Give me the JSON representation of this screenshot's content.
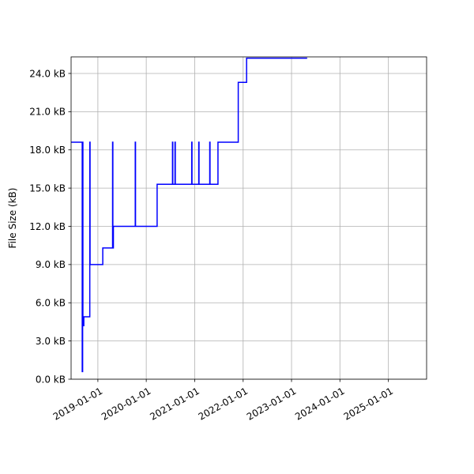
{
  "chart_data": {
    "type": "line",
    "title": "",
    "xlabel": "",
    "ylabel": "File Size (kB)",
    "x_scale": "date",
    "xlim": [
      "2018-06-13",
      "2025-10-16"
    ],
    "ylim": [
      0,
      25.3
    ],
    "grid": true,
    "legend": "none",
    "x_ticks": [
      "2019-01-01",
      "2020-01-01",
      "2021-01-01",
      "2022-01-01",
      "2023-01-01",
      "2024-01-01",
      "2025-01-01"
    ],
    "y_ticks": [
      0,
      3,
      6,
      9,
      12,
      15,
      18,
      21,
      24
    ],
    "y_tick_labels": [
      "0.0 kB",
      "3.0 kB",
      "6.0 kB",
      "9.0 kB",
      "12.0 kB",
      "15.0 kB",
      "18.0 kB",
      "21.0 kB",
      "24.0 kB"
    ],
    "series": [
      {
        "color": "#0000ff",
        "step": "post",
        "points": [
          [
            "2018-06-13",
            18.6
          ],
          [
            "2018-09-04",
            18.6
          ],
          [
            "2018-09-05",
            0.6
          ],
          [
            "2018-09-08",
            18.6
          ],
          [
            "2018-09-10",
            4.2
          ],
          [
            "2018-09-17",
            4.9
          ],
          [
            "2018-11-01",
            18.6
          ],
          [
            "2018-11-03",
            9.0
          ],
          [
            "2019-02-07",
            10.3
          ],
          [
            "2019-04-22",
            18.6
          ],
          [
            "2019-04-24",
            10.3
          ],
          [
            "2019-04-28",
            12.0
          ],
          [
            "2019-10-10",
            18.6
          ],
          [
            "2019-10-12",
            12.0
          ],
          [
            "2020-03-23",
            15.3
          ],
          [
            "2020-07-17",
            18.6
          ],
          [
            "2020-07-19",
            15.3
          ],
          [
            "2020-08-05",
            18.6
          ],
          [
            "2020-08-07",
            15.3
          ],
          [
            "2020-12-09",
            18.6
          ],
          [
            "2020-12-11",
            15.3
          ],
          [
            "2021-01-31",
            18.6
          ],
          [
            "2021-02-02",
            15.3
          ],
          [
            "2021-04-24",
            18.6
          ],
          [
            "2021-04-26",
            15.3
          ],
          [
            "2021-06-25",
            18.6
          ],
          [
            "2021-11-25",
            23.3
          ],
          [
            "2022-01-27",
            25.2
          ],
          [
            "2023-04-29",
            25.2
          ]
        ]
      }
    ]
  }
}
